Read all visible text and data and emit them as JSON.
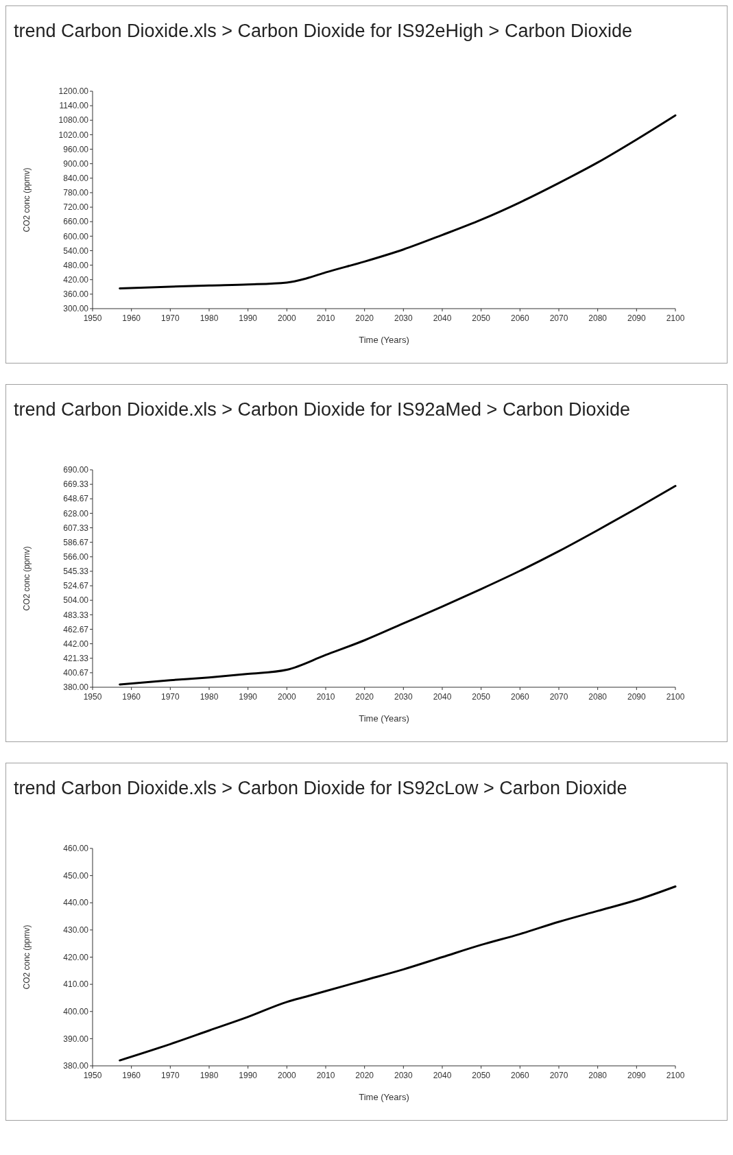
{
  "chart_data": [
    {
      "type": "line",
      "title": "trend Carbon Dioxide.xls > Carbon Dioxide for IS92eHigh > Carbon Dioxide",
      "xlabel": "Time (Years)",
      "ylabel": "CO2 conc (ppmv)",
      "xlim": [
        1950,
        2100
      ],
      "xticks": [
        1950,
        1960,
        1970,
        1980,
        1990,
        2000,
        2010,
        2020,
        2030,
        2040,
        2050,
        2060,
        2070,
        2080,
        2090,
        2100
      ],
      "ylim": [
        300,
        1200
      ],
      "yticks": [
        {
          "value": 300,
          "label": "300.00"
        },
        {
          "value": 360,
          "label": "360.00"
        },
        {
          "value": 420,
          "label": "420.00"
        },
        {
          "value": 480,
          "label": "480.00"
        },
        {
          "value": 540,
          "label": "540.00"
        },
        {
          "value": 600,
          "label": "600.00"
        },
        {
          "value": 660,
          "label": "660.00"
        },
        {
          "value": 720,
          "label": "720.00"
        },
        {
          "value": 780,
          "label": "780.00"
        },
        {
          "value": 840,
          "label": "840.00"
        },
        {
          "value": 900,
          "label": "900.00"
        },
        {
          "value": 960,
          "label": "960.00"
        },
        {
          "value": 1020,
          "label": "1020.00"
        },
        {
          "value": 1080,
          "label": "1080.00"
        },
        {
          "value": 1140,
          "label": "1140.00"
        },
        {
          "value": 1200,
          "label": "1200.00"
        }
      ],
      "grid": false,
      "series": [
        {
          "color": "#000000",
          "x": [
            1957,
            1965,
            1970,
            1980,
            1990,
            2000,
            2005,
            2010,
            2020,
            2030,
            2040,
            2050,
            2060,
            2070,
            2080,
            2090,
            2100
          ],
          "values": [
            384,
            388,
            391,
            396,
            400,
            408,
            425,
            450,
            495,
            545,
            605,
            668,
            740,
            820,
            905,
            1000,
            1100
          ]
        }
      ]
    },
    {
      "type": "line",
      "title": "trend Carbon Dioxide.xls > Carbon Dioxide for IS92aMed > Carbon Dioxide",
      "xlabel": "Time (Years)",
      "ylabel": "CO2 conc (ppmv)",
      "xlim": [
        1950,
        2100
      ],
      "xticks": [
        1950,
        1960,
        1970,
        1980,
        1990,
        2000,
        2010,
        2020,
        2030,
        2040,
        2050,
        2060,
        2070,
        2080,
        2090,
        2100
      ],
      "ylim": [
        380,
        690
      ],
      "yticks": [
        {
          "value": 380,
          "label": "380.00"
        },
        {
          "value": 400.67,
          "label": "400.67"
        },
        {
          "value": 421.33,
          "label": "421.33"
        },
        {
          "value": 442,
          "label": "442.00"
        },
        {
          "value": 462.67,
          "label": "462.67"
        },
        {
          "value": 483.33,
          "label": "483.33"
        },
        {
          "value": 504,
          "label": "504.00"
        },
        {
          "value": 524.67,
          "label": "524.67"
        },
        {
          "value": 545.33,
          "label": "545.33"
        },
        {
          "value": 566,
          "label": "566.00"
        },
        {
          "value": 586.67,
          "label": "586.67"
        },
        {
          "value": 607.33,
          "label": "607.33"
        },
        {
          "value": 628,
          "label": "628.00"
        },
        {
          "value": 648.67,
          "label": "648.67"
        },
        {
          "value": 669.33,
          "label": "669.33"
        },
        {
          "value": 690,
          "label": "690.00"
        }
      ],
      "grid": false,
      "series": [
        {
          "color": "#000000",
          "x": [
            1957,
            1970,
            1980,
            1990,
            2000,
            2010,
            2020,
            2030,
            2040,
            2050,
            2060,
            2070,
            2080,
            2090,
            2100
          ],
          "values": [
            384,
            390,
            394,
            399,
            405,
            426,
            447,
            471,
            495,
            520,
            546,
            574,
            604,
            635,
            667
          ]
        }
      ]
    },
    {
      "type": "line",
      "title": "trend Carbon Dioxide.xls > Carbon Dioxide for IS92cLow > Carbon Dioxide",
      "xlabel": "Time (Years)",
      "ylabel": "CO2 conc (ppmv)",
      "xlim": [
        1950,
        2100
      ],
      "xticks": [
        1950,
        1960,
        1970,
        1980,
        1990,
        2000,
        2010,
        2020,
        2030,
        2040,
        2050,
        2060,
        2070,
        2080,
        2090,
        2100
      ],
      "ylim": [
        380,
        460
      ],
      "yticks": [
        {
          "value": 380,
          "label": "380.00"
        },
        {
          "value": 390,
          "label": "390.00"
        },
        {
          "value": 400,
          "label": "400.00"
        },
        {
          "value": 410,
          "label": "410.00"
        },
        {
          "value": 420,
          "label": "420.00"
        },
        {
          "value": 430,
          "label": "430.00"
        },
        {
          "value": 440,
          "label": "440.00"
        },
        {
          "value": 450,
          "label": "450.00"
        },
        {
          "value": 460,
          "label": "460.00"
        }
      ],
      "grid": false,
      "series": [
        {
          "color": "#000000",
          "x": [
            1957,
            1970,
            1980,
            1990,
            2000,
            2005,
            2010,
            2020,
            2030,
            2040,
            2050,
            2060,
            2070,
            2080,
            2090,
            2100
          ],
          "values": [
            382,
            388,
            393,
            398,
            403.5,
            405.5,
            407.5,
            411.5,
            415.5,
            420,
            424.5,
            428.5,
            433,
            437,
            441,
            446
          ]
        }
      ]
    }
  ]
}
